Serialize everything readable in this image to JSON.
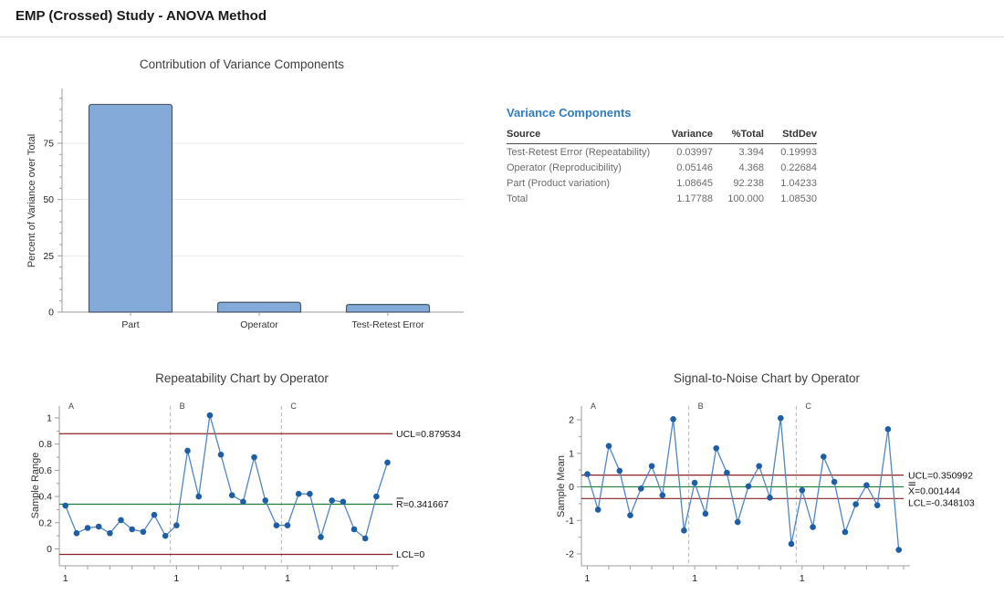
{
  "page": {
    "title": "EMP (Crossed) Study - ANOVA Method"
  },
  "colors": {
    "accent_blue": "#2e7dc1",
    "bar_fill": "#83aad8",
    "bar_stroke": "#49586a",
    "point": "#1d5ea4",
    "line": "#5086c3",
    "limit": "#8e2025",
    "center": "#1f7c35",
    "dashed": "#b3b3b3",
    "axis": "#9c9c9c"
  },
  "variance_table": {
    "title": "Variance Components",
    "columns": [
      "Source",
      "Variance",
      "%Total",
      "StdDev"
    ],
    "rows": [
      [
        "Test-Retest Error (Repeatability)",
        "0.03997",
        "3.394",
        "0.19993"
      ],
      [
        "Operator (Reproducibility)",
        "0.05146",
        "4.368",
        "0.22684"
      ],
      [
        "Part (Product variation)",
        "1.08645",
        "92.238",
        "1.04233"
      ],
      [
        "Total",
        "1.17788",
        "100.000",
        "1.08530"
      ]
    ]
  },
  "chart_data": [
    {
      "id": "contribution",
      "type": "bar",
      "title": "Contribution of Variance Components",
      "ylabel": "Percent of Variance over Total",
      "xlabel": "",
      "categories": [
        "Part",
        "Operator",
        "Test-Retest Error"
      ],
      "values": [
        92.238,
        4.368,
        3.394
      ],
      "ylim": [
        0,
        99
      ],
      "yticks": [
        0,
        25,
        50,
        75
      ],
      "yminor_ticks": [
        5,
        10,
        15,
        20,
        30,
        35,
        40,
        45,
        55,
        60,
        65,
        70,
        80,
        85,
        90,
        95
      ],
      "grid": true,
      "legend": false
    },
    {
      "id": "repeatability",
      "type": "line",
      "title": "Repeatability Chart by Operator",
      "ylabel": "Sample Range",
      "groups": [
        "A",
        "B",
        "C"
      ],
      "x_section_start_label": "1",
      "series": [
        {
          "name": "A",
          "values": [
            0.33,
            0.12,
            0.16,
            0.17,
            0.12,
            0.22,
            0.15,
            0.13,
            0.26,
            0.1
          ]
        },
        {
          "name": "B",
          "values": [
            0.18,
            0.75,
            0.4,
            1.02,
            0.72,
            0.41,
            0.36,
            0.7,
            0.37,
            0.18
          ]
        },
        {
          "name": "C",
          "values": [
            0.18,
            0.42,
            0.42,
            0.09,
            0.37,
            0.36,
            0.15,
            0.08,
            0.4,
            0.66
          ]
        }
      ],
      "ylim": [
        -0.13,
        1.09
      ],
      "yticks": [
        1,
        0.8,
        0.6,
        0.4,
        0.2,
        0
      ],
      "yminor_ticks": [
        0.9,
        0.7,
        0.5,
        0.3,
        0.1
      ],
      "lines": [
        {
          "label": "UCL=0.879534",
          "value": 0.879534,
          "role": "limit",
          "decor": "none"
        },
        {
          "label": "R=0.341667",
          "value": 0.341667,
          "role": "center",
          "decor": "bar"
        },
        {
          "label": "LCL=0",
          "value": 0,
          "role": "limit",
          "decor": "none"
        }
      ],
      "grid": false,
      "legend": false
    },
    {
      "id": "signal_to_noise",
      "type": "line",
      "title": "Signal-to-Noise Chart by Operator",
      "ylabel": "Sample Mean",
      "groups": [
        "A",
        "B",
        "C"
      ],
      "x_section_start_label": "1",
      "series": [
        {
          "name": "A",
          "values": [
            0.38,
            -0.68,
            1.22,
            0.48,
            -0.85,
            -0.05,
            0.62,
            -0.25,
            2.02,
            -1.3
          ]
        },
        {
          "name": "B",
          "values": [
            0.12,
            -0.8,
            1.15,
            0.42,
            -1.05,
            0.02,
            0.62,
            -0.32,
            2.05,
            -1.7
          ]
        },
        {
          "name": "C",
          "values": [
            -0.1,
            -1.2,
            0.9,
            0.15,
            -1.35,
            -0.52,
            0.05,
            -0.55,
            1.72,
            -1.88
          ]
        }
      ],
      "ylim": [
        -2.35,
        2.41
      ],
      "yticks": [
        2,
        1,
        0,
        -1,
        -2
      ],
      "yminor_ticks": [
        1.5,
        0.5,
        -0.5,
        -1.5
      ],
      "lines": [
        {
          "label": "UCL=0.350992",
          "value": 0.350992,
          "role": "limit",
          "decor": "none"
        },
        {
          "label": "X=0.001444",
          "value": 0.001444,
          "role": "center",
          "decor": "dbar"
        },
        {
          "label": "LCL=-0.348103",
          "value": -0.348103,
          "role": "limit",
          "decor": "none"
        }
      ],
      "grid": false,
      "legend": false
    }
  ]
}
